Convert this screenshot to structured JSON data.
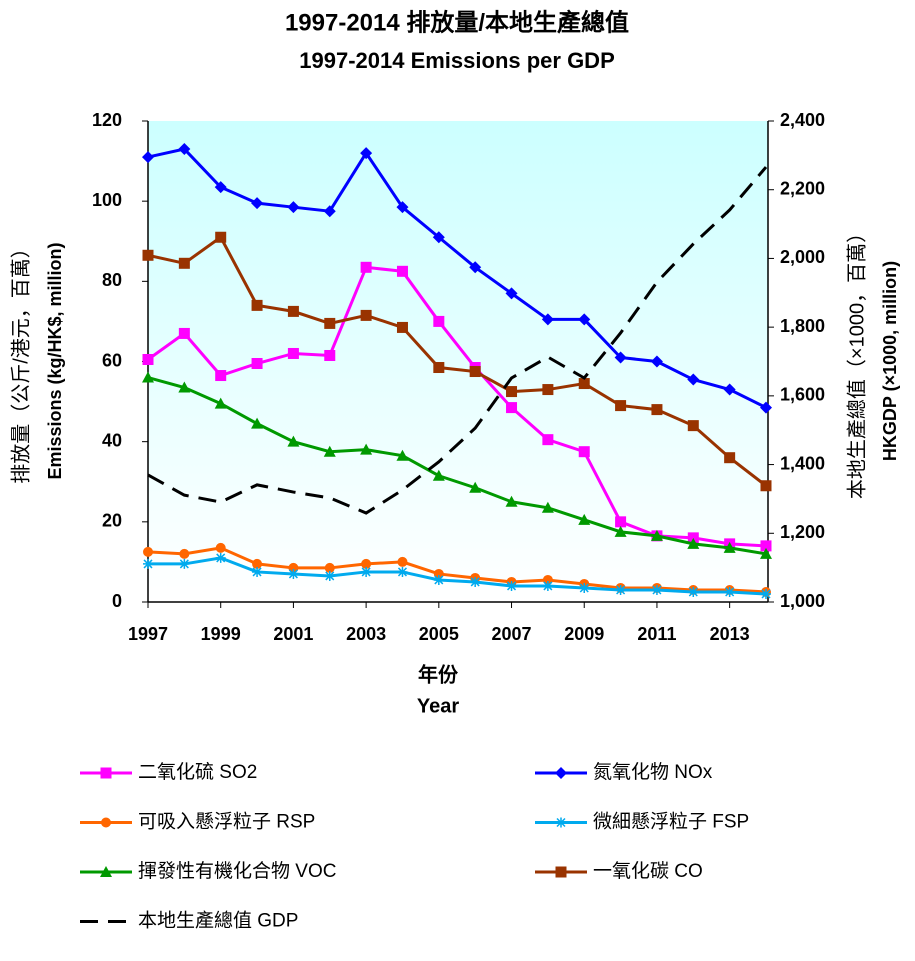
{
  "chart_data": {
    "type": "line",
    "title": "1997-2014 排放量/本地生產總值",
    "subtitle": "1997-2014 Emissions per GDP",
    "x_label": "年份",
    "x_label_en": "Year",
    "y_label": "排放量（公斤/港元，百萬）",
    "y_label_en": "Emissions (kg/HK$, million)",
    "y2_label": "本地生產總值（×1000，百萬）",
    "y2_label_en": "HKGDP (×1000, million)",
    "x": [
      1997,
      1998,
      1999,
      2000,
      2001,
      2002,
      2003,
      2004,
      2005,
      2006,
      2007,
      2008,
      2009,
      2010,
      2011,
      2012,
      2013,
      2014
    ],
    "xlim": [
      1997,
      2014
    ],
    "xticks": [
      1997,
      1999,
      2001,
      2003,
      2005,
      2007,
      2009,
      2011,
      2013
    ],
    "ylim": [
      0,
      120
    ],
    "yticks": [
      0,
      20,
      40,
      60,
      80,
      100,
      120
    ],
    "y2lim": [
      1000,
      2400
    ],
    "y2ticks": [
      {
        "value": 1000,
        "label": "1,000"
      },
      {
        "value": 1200,
        "label": "1,200"
      },
      {
        "value": 1400,
        "label": "1,400"
      },
      {
        "value": 1600,
        "label": "1,600"
      },
      {
        "value": 1800,
        "label": "1,800"
      },
      {
        "value": 2000,
        "label": "2,000"
      },
      {
        "value": 2200,
        "label": "2,200"
      },
      {
        "value": 2400,
        "label": "2,400"
      }
    ],
    "series": [
      {
        "name": "二氧化硫 SO2",
        "color": "#ff00ff",
        "marker": "square",
        "values": [
          60.5,
          67,
          56.5,
          59.5,
          62,
          61.5,
          83.5,
          82.5,
          70,
          58.5,
          48.5,
          40.5,
          37.5,
          20,
          16.5,
          16,
          14.5,
          14
        ]
      },
      {
        "name": "氮氧化物 NOx",
        "color": "#0000ff",
        "marker": "diamond",
        "values": [
          111,
          113,
          103.5,
          99.5,
          98.5,
          97.5,
          112,
          98.5,
          91,
          83.5,
          77,
          70.5,
          70.5,
          61,
          60,
          55.5,
          53,
          48.5
        ]
      },
      {
        "name": "可吸入懸浮粒子 RSP",
        "color": "#ff6600",
        "marker": "circle",
        "values": [
          12.5,
          12,
          13.5,
          9.5,
          8.5,
          8.5,
          9.5,
          10,
          7,
          6,
          5,
          5.5,
          4.5,
          3.5,
          3.5,
          3,
          3,
          2.5
        ]
      },
      {
        "name": "微細懸浮粒子 FSP",
        "color": "#00aaee",
        "marker": "star",
        "values": [
          9.5,
          9.5,
          11,
          7.5,
          7,
          6.5,
          7.5,
          7.5,
          5.5,
          5,
          4,
          4,
          3.5,
          3,
          3,
          2.5,
          2.5,
          2
        ]
      },
      {
        "name": "揮發性有機化合物 VOC",
        "color": "#009900",
        "marker": "triangle",
        "values": [
          56,
          53.5,
          49.5,
          44.5,
          40,
          37.5,
          38,
          36.5,
          31.5,
          28.5,
          25,
          23.5,
          20.5,
          17.5,
          16.5,
          14.5,
          13.5,
          12
        ]
      },
      {
        "name": "一氧化碳 CO",
        "color": "#993300",
        "marker": "square",
        "values": [
          86.5,
          84.5,
          91,
          74,
          72.5,
          69.5,
          71.5,
          68.5,
          58.5,
          57.5,
          52.5,
          53,
          54.5,
          49,
          48,
          44,
          36,
          29
        ]
      },
      {
        "name": "本地生產總值 GDP",
        "color": "#000000",
        "marker": "none",
        "dash": true,
        "axis": "y2",
        "values": [
          1370,
          1311,
          1291,
          1341,
          1320,
          1303,
          1259,
          1326,
          1408,
          1506,
          1652,
          1713,
          1652,
          1783,
          1931,
          2042,
          2141,
          2266
        ]
      }
    ]
  }
}
